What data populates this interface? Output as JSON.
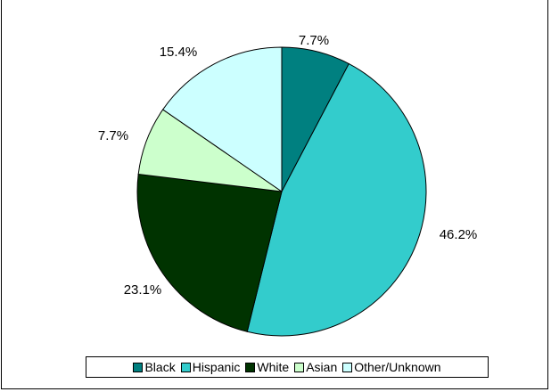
{
  "chart_data": {
    "type": "pie",
    "title": "",
    "legend_position": "bottom",
    "slices": [
      {
        "name": "Black",
        "value": 7.7,
        "label": "7.7%",
        "color": "#008080"
      },
      {
        "name": "Hispanic",
        "value": 46.2,
        "label": "46.2%",
        "color": "#33CCCC"
      },
      {
        "name": "White",
        "value": 23.1,
        "label": "23.1%",
        "color": "#003300"
      },
      {
        "name": "Asian",
        "value": 7.7,
        "label": "7.7%",
        "color": "#CCFFCC"
      },
      {
        "name": "Other/Unknown",
        "value": 15.4,
        "label": "15.4%",
        "color": "#CCFFFF"
      }
    ]
  }
}
